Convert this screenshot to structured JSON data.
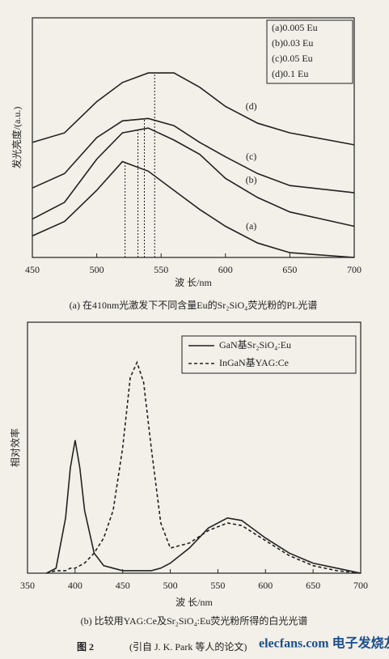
{
  "chart_data": [
    {
      "type": "line",
      "title": "(a) 在410nm光激发下不同含量Eu的Sr₂SiO₄荧光粉的PL光谱",
      "xlabel": "波 长/nm",
      "ylabel": "发光亮度/(a.u.)",
      "x": [
        450,
        475,
        500,
        520,
        540,
        560,
        580,
        600,
        625,
        650,
        700
      ],
      "xlim": [
        450,
        700
      ],
      "xticks": [
        450,
        500,
        550,
        600,
        650,
        700
      ],
      "ylim": [
        0,
        100
      ],
      "series": [
        {
          "name": "(a)0.005 Eu",
          "label": "(a)",
          "color": "#222",
          "linestyle": "solid",
          "values": [
            9,
            15,
            28,
            40,
            36,
            28,
            20,
            13,
            6,
            2,
            0
          ]
        },
        {
          "name": "(b)0.03 Eu",
          "label": "(b)",
          "color": "#222",
          "linestyle": "solid",
          "values": [
            16,
            23,
            41,
            52,
            54,
            49,
            43,
            33,
            25,
            19,
            13
          ]
        },
        {
          "name": "(c)0.05 Eu",
          "label": "(c)",
          "color": "#222",
          "linestyle": "solid",
          "values": [
            29,
            35,
            50,
            57,
            58,
            55,
            48,
            42,
            35,
            30,
            27
          ]
        },
        {
          "name": "(d)0.1 Eu",
          "label": "(d)",
          "color": "#222",
          "linestyle": "solid",
          "values": [
            48,
            52,
            65,
            73,
            77,
            77,
            71,
            63,
            56,
            52,
            47
          ]
        }
      ],
      "peak_lines": [
        522,
        532,
        537,
        545
      ]
    },
    {
      "type": "line",
      "title": "(b) 比较用YAG:Ce及Sr₂SiO₄:Eu荧光粉所得的白光光谱",
      "xlabel": "波 长/nm",
      "ylabel": "相对效率",
      "x": [
        370,
        380,
        390,
        395,
        400,
        405,
        410,
        420,
        430,
        440,
        450,
        458,
        465,
        472,
        480,
        490,
        500,
        520,
        540,
        560,
        575,
        600,
        625,
        650,
        675,
        700
      ],
      "xlim": [
        350,
        700
      ],
      "xticks": [
        350,
        400,
        450,
        500,
        550,
        600,
        650,
        700
      ],
      "ylim": [
        0,
        100
      ],
      "series": [
        {
          "name": "GaN基Sr₂SiO₄:Eu",
          "color": "#222",
          "linestyle": "solid",
          "values": [
            0,
            2,
            22,
            42,
            53,
            42,
            25,
            8,
            3,
            2,
            1,
            1,
            1,
            1,
            1,
            2,
            4,
            10,
            18,
            22,
            21,
            14,
            8,
            4,
            2,
            0
          ]
        },
        {
          "name": "InGaN基YAG:Ce",
          "color": "#222",
          "linestyle": "dashed",
          "values": [
            0,
            1,
            1,
            2,
            2,
            3,
            4,
            8,
            14,
            25,
            50,
            78,
            84,
            76,
            50,
            20,
            10,
            12,
            17,
            20,
            19,
            13,
            7,
            3,
            1,
            0
          ]
        }
      ]
    }
  ],
  "footer": {
    "figure": "图 2",
    "source": "(引自 J. K. Park 等人的论文)",
    "watermark": "elecfans.com 电子发烧友"
  }
}
